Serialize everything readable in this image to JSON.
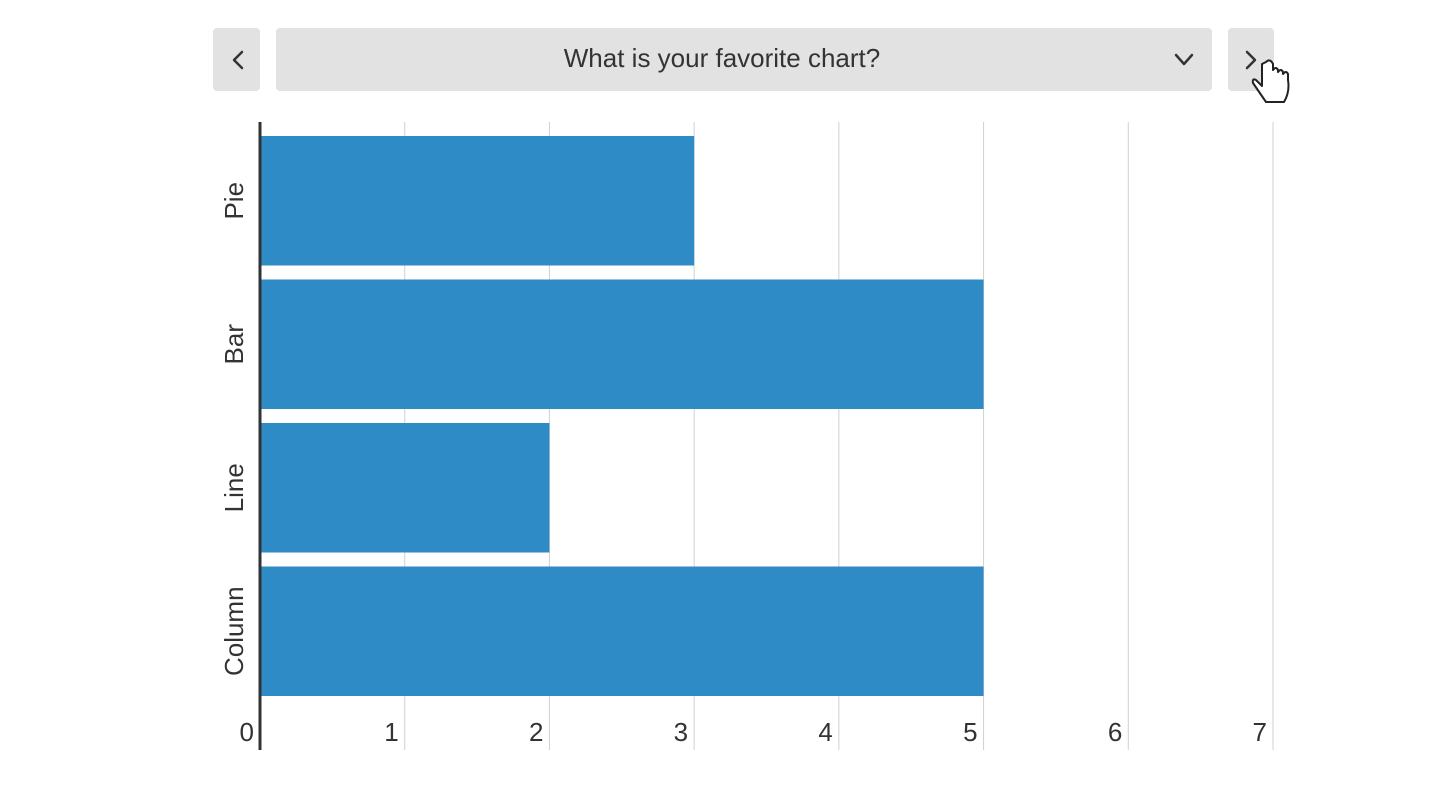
{
  "question": "What is your favorite chart?",
  "chart_data": {
    "type": "bar",
    "orientation": "horizontal",
    "categories": [
      "Pie",
      "Bar",
      "Line",
      "Column"
    ],
    "values": [
      3,
      5,
      2,
      5
    ],
    "color": "#2e8bc6",
    "xlim": [
      0,
      7
    ],
    "xticks": [
      0,
      1,
      2,
      3,
      4,
      5,
      6,
      7
    ],
    "grid": true
  }
}
